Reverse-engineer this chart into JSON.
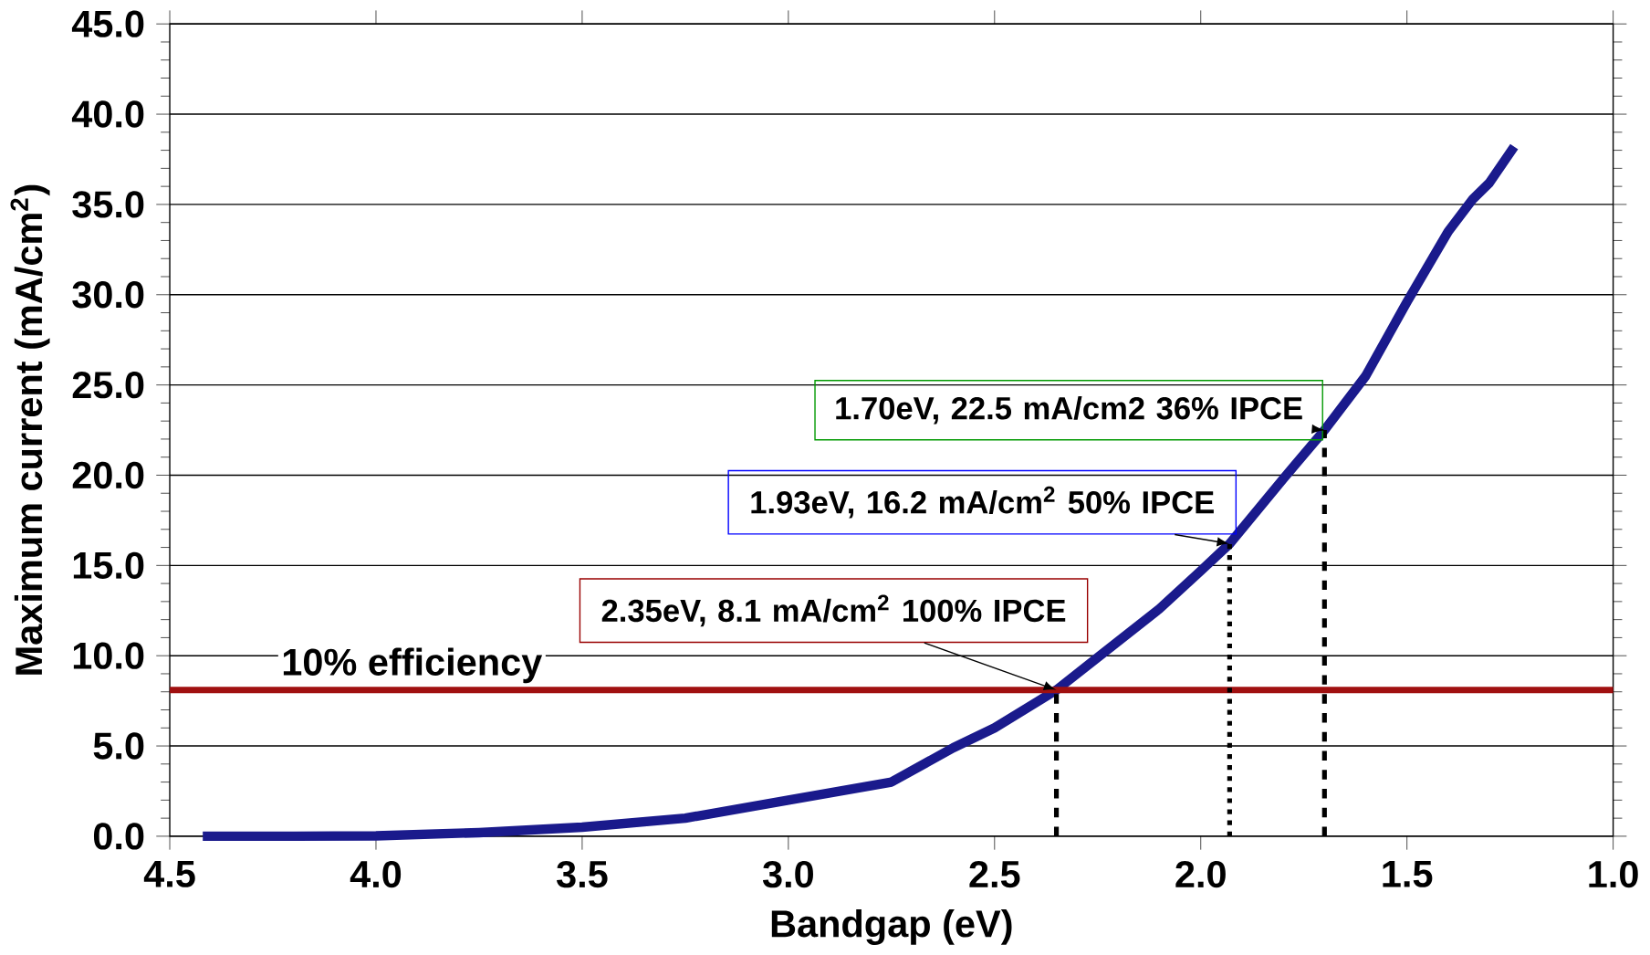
{
  "chart_data": {
    "type": "line",
    "xlabel": "Bandgap (eV)",
    "ylabel": "Maximum current (mA/cm$^{2}$)",
    "x": [
      4.42,
      4.2,
      4.0,
      3.75,
      3.5,
      3.25,
      3.0,
      2.75,
      2.6,
      2.5,
      2.35,
      2.25,
      2.1,
      2.0,
      1.93,
      1.8,
      1.7,
      1.6,
      1.5,
      1.4,
      1.34,
      1.3,
      1.24
    ],
    "series": [
      {
        "color": "#1a1a8c",
        "values": [
          0,
          0,
          0.02,
          0.2,
          0.5,
          1.0,
          2.0,
          3.0,
          4.9,
          6.0,
          8.1,
          9.9,
          12.6,
          14.7,
          16.2,
          19.8,
          22.5,
          25.5,
          29.6,
          33.5,
          35.3,
          36.2,
          38.2
        ]
      }
    ],
    "xlim": [
      4.5,
      1.0
    ],
    "ylim": [
      0,
      45
    ],
    "xticks": [
      {
        "value": 4.5,
        "label": "4.5"
      },
      {
        "value": 4.0,
        "label": "4.0"
      },
      {
        "value": 3.5,
        "label": "3.5"
      },
      {
        "value": 3.0,
        "label": "3.0"
      },
      {
        "value": 2.5,
        "label": "2.5"
      },
      {
        "value": 2.0,
        "label": "2.0"
      },
      {
        "value": 1.5,
        "label": "1.5"
      },
      {
        "value": 1.0,
        "label": "1.0"
      }
    ],
    "yticks": [
      {
        "value": 0,
        "label": "0.0"
      },
      {
        "value": 5,
        "label": "5.0"
      },
      {
        "value": 10,
        "label": "10.0"
      },
      {
        "value": 15,
        "label": "15.0"
      },
      {
        "value": 20,
        "label": "20.0"
      },
      {
        "value": 25,
        "label": "25.0"
      },
      {
        "value": 30,
        "label": "30.0"
      },
      {
        "value": 35,
        "label": "35.0"
      },
      {
        "value": 40,
        "label": "40.0"
      },
      {
        "value": 45,
        "label": "45.0"
      }
    ],
    "grid": "y",
    "marker": "none",
    "line_style": "solid",
    "ref_lines": [
      {
        "axis": "y",
        "value": 8.1,
        "label": "10% efficiency",
        "color": "#a01010"
      },
      {
        "axis": "x",
        "value": 2.35,
        "line_style": "dashed"
      },
      {
        "axis": "x",
        "value": 1.93,
        "line_style": "dotted"
      },
      {
        "axis": "x",
        "value": 1.7,
        "line_style": "dashed"
      }
    ],
    "annotations": [
      {
        "text": "1.70eV, 22.5 mA/cm2 36% IPCE",
        "x": 1.7,
        "y": 22.5
      },
      {
        "text": "1.93eV, 16.2 mA/cm$^{2}$ 50% IPCE",
        "x": 1.93,
        "y": 16.2
      },
      {
        "text": "2.35eV, 8.1 mA/cm$^{2}$ 100% IPCE",
        "x": 2.35,
        "y": 8.1
      }
    ]
  }
}
